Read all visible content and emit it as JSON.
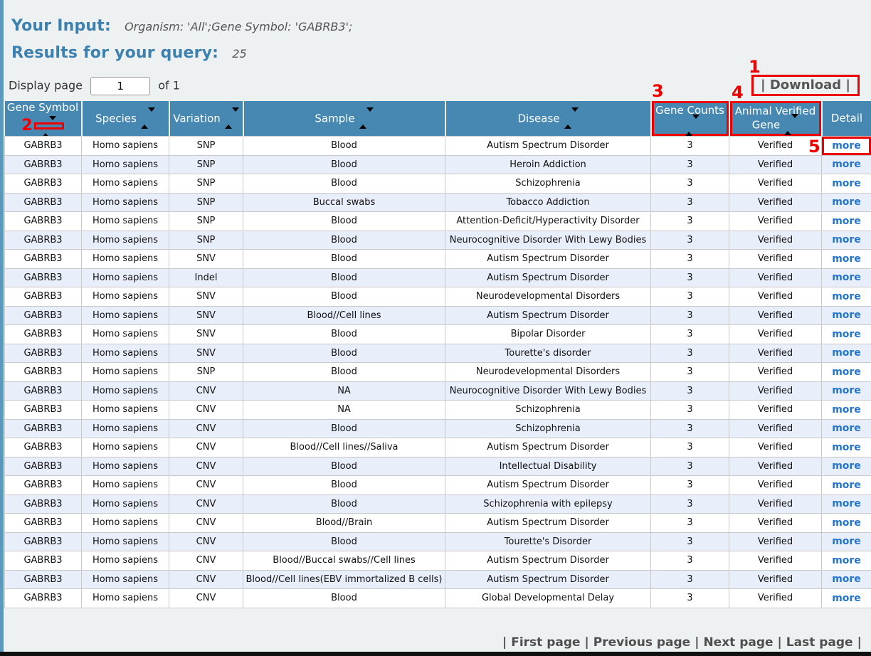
{
  "header": {
    "your_input_label": "Your Input:",
    "your_input_value": "Organism: 'All';Gene Symbol: 'GABRB3';",
    "results_label": "Results for your query:",
    "results_count": "25"
  },
  "toolbar": {
    "display_page_label": "Display page",
    "page_input_value": "1",
    "of_label": "of 1",
    "download_label": "| Download |"
  },
  "annotations": {
    "n1": "1",
    "n2": "2",
    "n3": "3",
    "n4": "4",
    "n5": "5",
    "box_color": "#ee0000"
  },
  "table": {
    "columns": [
      {
        "label": "Gene Symbol",
        "sortable": true
      },
      {
        "label": "Species",
        "sortable": true
      },
      {
        "label": "Variation",
        "sortable": true
      },
      {
        "label": "Sample",
        "sortable": true
      },
      {
        "label": "Disease",
        "sortable": true
      },
      {
        "label": "Gene Counts",
        "sortable": true
      },
      {
        "label": "Animal Verified Gene",
        "sortable": true
      },
      {
        "label": "Detail",
        "sortable": false
      }
    ],
    "rows": [
      {
        "gene_symbol": "GABRB3",
        "species": "Homo sapiens",
        "variation": "SNP",
        "sample": "Blood",
        "disease": "Autism Spectrum Disorder",
        "gene_counts": "3",
        "animal_verified_gene": "Verified",
        "detail": "more"
      },
      {
        "gene_symbol": "GABRB3",
        "species": "Homo sapiens",
        "variation": "SNP",
        "sample": "Blood",
        "disease": "Heroin Addiction",
        "gene_counts": "3",
        "animal_verified_gene": "Verified",
        "detail": "more"
      },
      {
        "gene_symbol": "GABRB3",
        "species": "Homo sapiens",
        "variation": "SNP",
        "sample": "Blood",
        "disease": "Schizophrenia",
        "gene_counts": "3",
        "animal_verified_gene": "Verified",
        "detail": "more"
      },
      {
        "gene_symbol": "GABRB3",
        "species": "Homo sapiens",
        "variation": "SNP",
        "sample": "Buccal swabs",
        "disease": "Tobacco Addiction",
        "gene_counts": "3",
        "animal_verified_gene": "Verified",
        "detail": "more"
      },
      {
        "gene_symbol": "GABRB3",
        "species": "Homo sapiens",
        "variation": "SNP",
        "sample": "Blood",
        "disease": "Attention-Deficit/Hyperactivity Disorder",
        "gene_counts": "3",
        "animal_verified_gene": "Verified",
        "detail": "more"
      },
      {
        "gene_symbol": "GABRB3",
        "species": "Homo sapiens",
        "variation": "SNP",
        "sample": "Blood",
        "disease": "Neurocognitive Disorder With Lewy Bodies",
        "gene_counts": "3",
        "animal_verified_gene": "Verified",
        "detail": "more"
      },
      {
        "gene_symbol": "GABRB3",
        "species": "Homo sapiens",
        "variation": "SNV",
        "sample": "Blood",
        "disease": "Autism Spectrum Disorder",
        "gene_counts": "3",
        "animal_verified_gene": "Verified",
        "detail": "more"
      },
      {
        "gene_symbol": "GABRB3",
        "species": "Homo sapiens",
        "variation": "Indel",
        "sample": "Blood",
        "disease": "Autism Spectrum Disorder",
        "gene_counts": "3",
        "animal_verified_gene": "Verified",
        "detail": "more"
      },
      {
        "gene_symbol": "GABRB3",
        "species": "Homo sapiens",
        "variation": "SNV",
        "sample": "Blood",
        "disease": "Neurodevelopmental Disorders",
        "gene_counts": "3",
        "animal_verified_gene": "Verified",
        "detail": "more"
      },
      {
        "gene_symbol": "GABRB3",
        "species": "Homo sapiens",
        "variation": "SNV",
        "sample": "Blood//Cell lines",
        "disease": "Autism Spectrum Disorder",
        "gene_counts": "3",
        "animal_verified_gene": "Verified",
        "detail": "more"
      },
      {
        "gene_symbol": "GABRB3",
        "species": "Homo sapiens",
        "variation": "SNV",
        "sample": "Blood",
        "disease": "Bipolar Disorder",
        "gene_counts": "3",
        "animal_verified_gene": "Verified",
        "detail": "more"
      },
      {
        "gene_symbol": "GABRB3",
        "species": "Homo sapiens",
        "variation": "SNV",
        "sample": "Blood",
        "disease": "Tourette's disorder",
        "gene_counts": "3",
        "animal_verified_gene": "Verified",
        "detail": "more"
      },
      {
        "gene_symbol": "GABRB3",
        "species": "Homo sapiens",
        "variation": "SNP",
        "sample": "Blood",
        "disease": "Neurodevelopmental Disorders",
        "gene_counts": "3",
        "animal_verified_gene": "Verified",
        "detail": "more"
      },
      {
        "gene_symbol": "GABRB3",
        "species": "Homo sapiens",
        "variation": "CNV",
        "sample": "NA",
        "disease": "Neurocognitive Disorder With Lewy Bodies",
        "gene_counts": "3",
        "animal_verified_gene": "Verified",
        "detail": "more"
      },
      {
        "gene_symbol": "GABRB3",
        "species": "Homo sapiens",
        "variation": "CNV",
        "sample": "NA",
        "disease": "Schizophrenia",
        "gene_counts": "3",
        "animal_verified_gene": "Verified",
        "detail": "more"
      },
      {
        "gene_symbol": "GABRB3",
        "species": "Homo sapiens",
        "variation": "CNV",
        "sample": "Blood",
        "disease": "Schizophrenia",
        "gene_counts": "3",
        "animal_verified_gene": "Verified",
        "detail": "more"
      },
      {
        "gene_symbol": "GABRB3",
        "species": "Homo sapiens",
        "variation": "CNV",
        "sample": "Blood//Cell lines//Saliva",
        "disease": "Autism Spectrum Disorder",
        "gene_counts": "3",
        "animal_verified_gene": "Verified",
        "detail": "more"
      },
      {
        "gene_symbol": "GABRB3",
        "species": "Homo sapiens",
        "variation": "CNV",
        "sample": "Blood",
        "disease": "Intellectual Disability",
        "gene_counts": "3",
        "animal_verified_gene": "Verified",
        "detail": "more"
      },
      {
        "gene_symbol": "GABRB3",
        "species": "Homo sapiens",
        "variation": "CNV",
        "sample": "Blood",
        "disease": "Autism Spectrum Disorder",
        "gene_counts": "3",
        "animal_verified_gene": "Verified",
        "detail": "more"
      },
      {
        "gene_symbol": "GABRB3",
        "species": "Homo sapiens",
        "variation": "CNV",
        "sample": "Blood",
        "disease": "Schizophrenia with epilepsy",
        "gene_counts": "3",
        "animal_verified_gene": "Verified",
        "detail": "more"
      },
      {
        "gene_symbol": "GABRB3",
        "species": "Homo sapiens",
        "variation": "CNV",
        "sample": "Blood//Brain",
        "disease": "Autism Spectrum Disorder",
        "gene_counts": "3",
        "animal_verified_gene": "Verified",
        "detail": "more"
      },
      {
        "gene_symbol": "GABRB3",
        "species": "Homo sapiens",
        "variation": "CNV",
        "sample": "Blood",
        "disease": "Tourette's Disorder",
        "gene_counts": "3",
        "animal_verified_gene": "Verified",
        "detail": "more"
      },
      {
        "gene_symbol": "GABRB3",
        "species": "Homo sapiens",
        "variation": "CNV",
        "sample": "Blood//Buccal swabs//Cell lines",
        "disease": "Autism Spectrum Disorder",
        "gene_counts": "3",
        "animal_verified_gene": "Verified",
        "detail": "more"
      },
      {
        "gene_symbol": "GABRB3",
        "species": "Homo sapiens",
        "variation": "CNV",
        "sample": "Blood//Cell lines(EBV immortalized B cells)",
        "disease": "Autism Spectrum Disorder",
        "gene_counts": "3",
        "animal_verified_gene": "Verified",
        "detail": "more"
      },
      {
        "gene_symbol": "GABRB3",
        "species": "Homo sapiens",
        "variation": "CNV",
        "sample": "Blood",
        "disease": "Global Developmental Delay",
        "gene_counts": "3",
        "animal_verified_gene": "Verified",
        "detail": "more"
      }
    ]
  },
  "pagination": {
    "first": "First page",
    "previous": "Previous page",
    "next": "Next page",
    "last": "Last page"
  },
  "colors": {
    "header_blue": "#4788b3",
    "title_blue": "#3c80b0",
    "alt_row": "#e8effa",
    "link_blue": "#2575d0",
    "annotation_red": "#ee0000",
    "page_bg": "#eef1f1"
  }
}
